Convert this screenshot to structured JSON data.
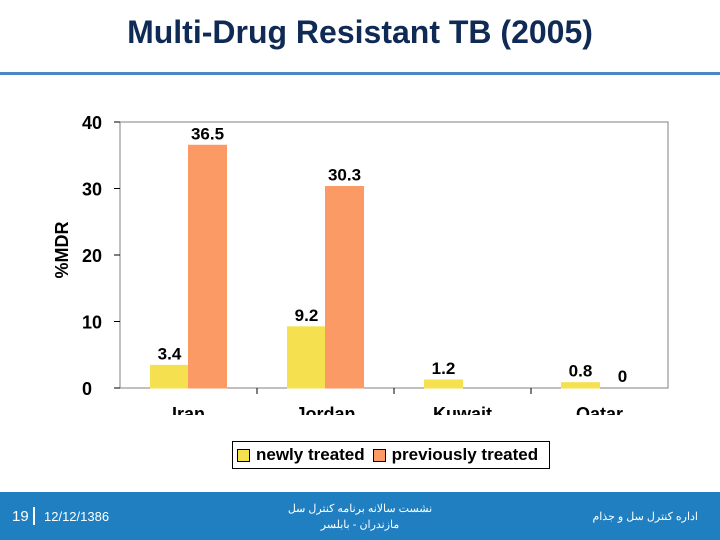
{
  "page": {
    "title": "Multi-Drug Resistant TB (2005)"
  },
  "chart_data": {
    "type": "bar",
    "ylabel": "%MDR",
    "ylim": [
      0,
      40
    ],
    "yticks": [
      "0",
      "10",
      "20",
      "30",
      "40"
    ],
    "categories": [
      "Iran",
      "Jordan",
      "Kuwait",
      "Qatar"
    ],
    "series": [
      {
        "name": "newly treated",
        "values": [
          3.4,
          9.2,
          1.2,
          0.8
        ],
        "labels": [
          "3.4",
          "9.2",
          "1.2",
          "0.8"
        ],
        "color": "#f5e04f"
      },
      {
        "name": "previously treated",
        "values": [
          36.5,
          30.3,
          null,
          0
        ],
        "labels": [
          "36.5",
          "30.3",
          "",
          "0"
        ],
        "color": "#fc9a66"
      }
    ],
    "grid": false,
    "legend_position": "bottom"
  },
  "footer": {
    "page_number": "19",
    "date": "12/12/1386",
    "center_line1": "نشست سالانه برنامه کنترل سل",
    "center_line2": "مازندران - بابلسر",
    "right_text": "اداره کنترل سل و جذام",
    "background": "#1f7fc1"
  }
}
